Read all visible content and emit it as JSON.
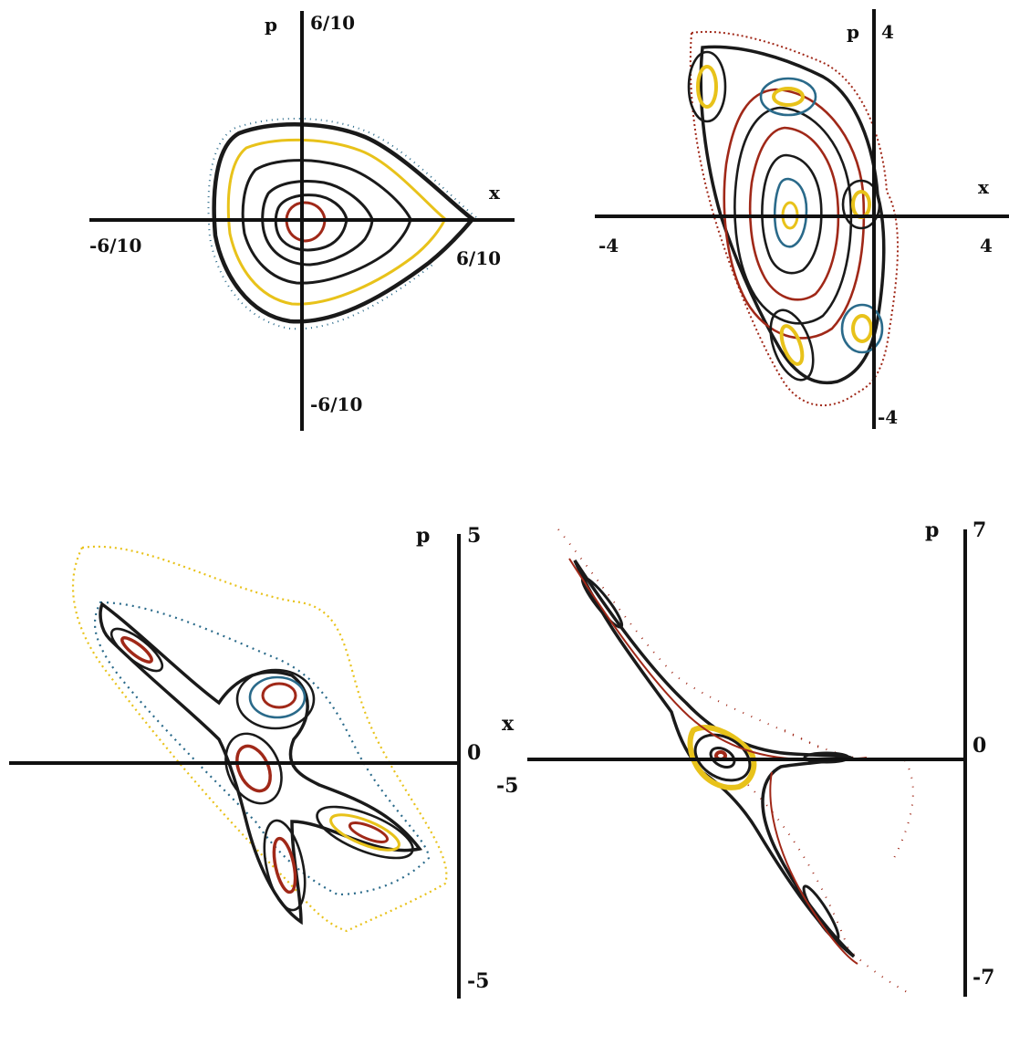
{
  "panels": [
    {
      "id": "a",
      "labels": {
        "x_axis": "x",
        "p_axis": "p",
        "x_min": "-6/10",
        "x_max": "6/10",
        "p_max": "6/10",
        "p_min": "-6/10"
      }
    },
    {
      "id": "b",
      "labels": {
        "x_axis": "x",
        "p_axis": "p",
        "x_min": "-4",
        "x_max": "4",
        "p_max": "4",
        "p_min": "-4"
      }
    },
    {
      "id": "c",
      "labels": {
        "p_axis": "p",
        "p_max": "5",
        "p_zero": "0",
        "p_min": "-5"
      }
    },
    {
      "id": "d",
      "labels": {
        "x_axis": "x",
        "x_min": "-5",
        "p_axis": "p",
        "p_max": "7",
        "p_zero": "0",
        "p_min": "-7"
      }
    }
  ],
  "colors": {
    "axis": "#111111",
    "curve_dark": "#1a1a1a",
    "curve_red": "#a02818",
    "curve_yellow": "#e8c21a",
    "curve_blue": "#2a6a8a",
    "curve_green": "#3a7a3a"
  }
}
